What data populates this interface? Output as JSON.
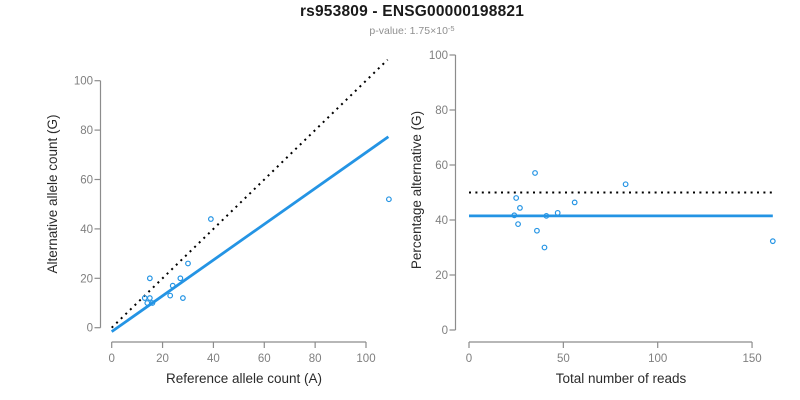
{
  "header": {
    "title": "rs953809 - ENSG00000198821",
    "pvalue_label": "p-value: 1.75×10",
    "pvalue_exponent": "-5"
  },
  "colors": {
    "accent_blue": "#2494E4",
    "dotted_black": "#000000",
    "axis_line": "#8C8C8C",
    "tick_label": "#7F7F7F",
    "axis_title": "#2B2B2B",
    "title": "#1A1A1A",
    "subtitle": "#8F8F8F",
    "background": "#FFFFFF"
  },
  "chart_data": [
    {
      "name": "allele-count-scatter",
      "type": "scatter",
      "title": "",
      "xlabel": "Reference allele count (A)",
      "ylabel": "Alternative allele count (G)",
      "xticks": [
        0,
        20,
        40,
        60,
        80,
        100
      ],
      "yticks": [
        0,
        20,
        40,
        60,
        80,
        100
      ],
      "xlim": [
        -4,
        110
      ],
      "ylim": [
        -6,
        112
      ],
      "grid": false,
      "points": [
        [
          14,
          10
        ],
        [
          13,
          12
        ],
        [
          15,
          12
        ],
        [
          16,
          10
        ],
        [
          15,
          20
        ],
        [
          23,
          13
        ],
        [
          28,
          12
        ],
        [
          24,
          17
        ],
        [
          27,
          20
        ],
        [
          30,
          26
        ],
        [
          39,
          44
        ],
        [
          109,
          52
        ]
      ],
      "lines": [
        {
          "name": "identity-line",
          "x1": 0,
          "y1": 0,
          "x2": 108.5,
          "y2": 108.5,
          "style": "dotted",
          "color": "dotted_black"
        },
        {
          "name": "fit-line",
          "x1": 0,
          "y1": -1.6,
          "x2": 108.8,
          "y2": 77.3,
          "style": "solid",
          "color": "accent_blue"
        }
      ]
    },
    {
      "name": "percentage-alternative-scatter",
      "type": "scatter",
      "title": "",
      "xlabel": "Total number of reads",
      "ylabel": "Percentage alternative (G)",
      "xticks": [
        0,
        50,
        100,
        150
      ],
      "yticks": [
        0,
        20,
        40,
        60,
        80,
        100
      ],
      "xlim": [
        -6,
        165
      ],
      "ylim": [
        -4,
        101
      ],
      "grid": false,
      "points": [
        [
          24,
          41.7
        ],
        [
          25,
          48
        ],
        [
          27,
          44.4
        ],
        [
          26,
          38.5
        ],
        [
          35,
          57.1
        ],
        [
          36,
          36.1
        ],
        [
          40,
          30
        ],
        [
          41,
          41.5
        ],
        [
          47,
          42.6
        ],
        [
          56,
          46.4
        ],
        [
          83,
          53
        ],
        [
          161,
          32.3
        ]
      ],
      "lines": [
        {
          "name": "expected-50pct-line",
          "x1": 0,
          "y1": 50,
          "x2": 161,
          "y2": 50,
          "style": "dotted",
          "color": "dotted_black"
        },
        {
          "name": "fit-line",
          "x1": 0,
          "y1": 41.5,
          "x2": 161,
          "y2": 41.5,
          "style": "solid",
          "color": "accent_blue"
        }
      ]
    }
  ]
}
